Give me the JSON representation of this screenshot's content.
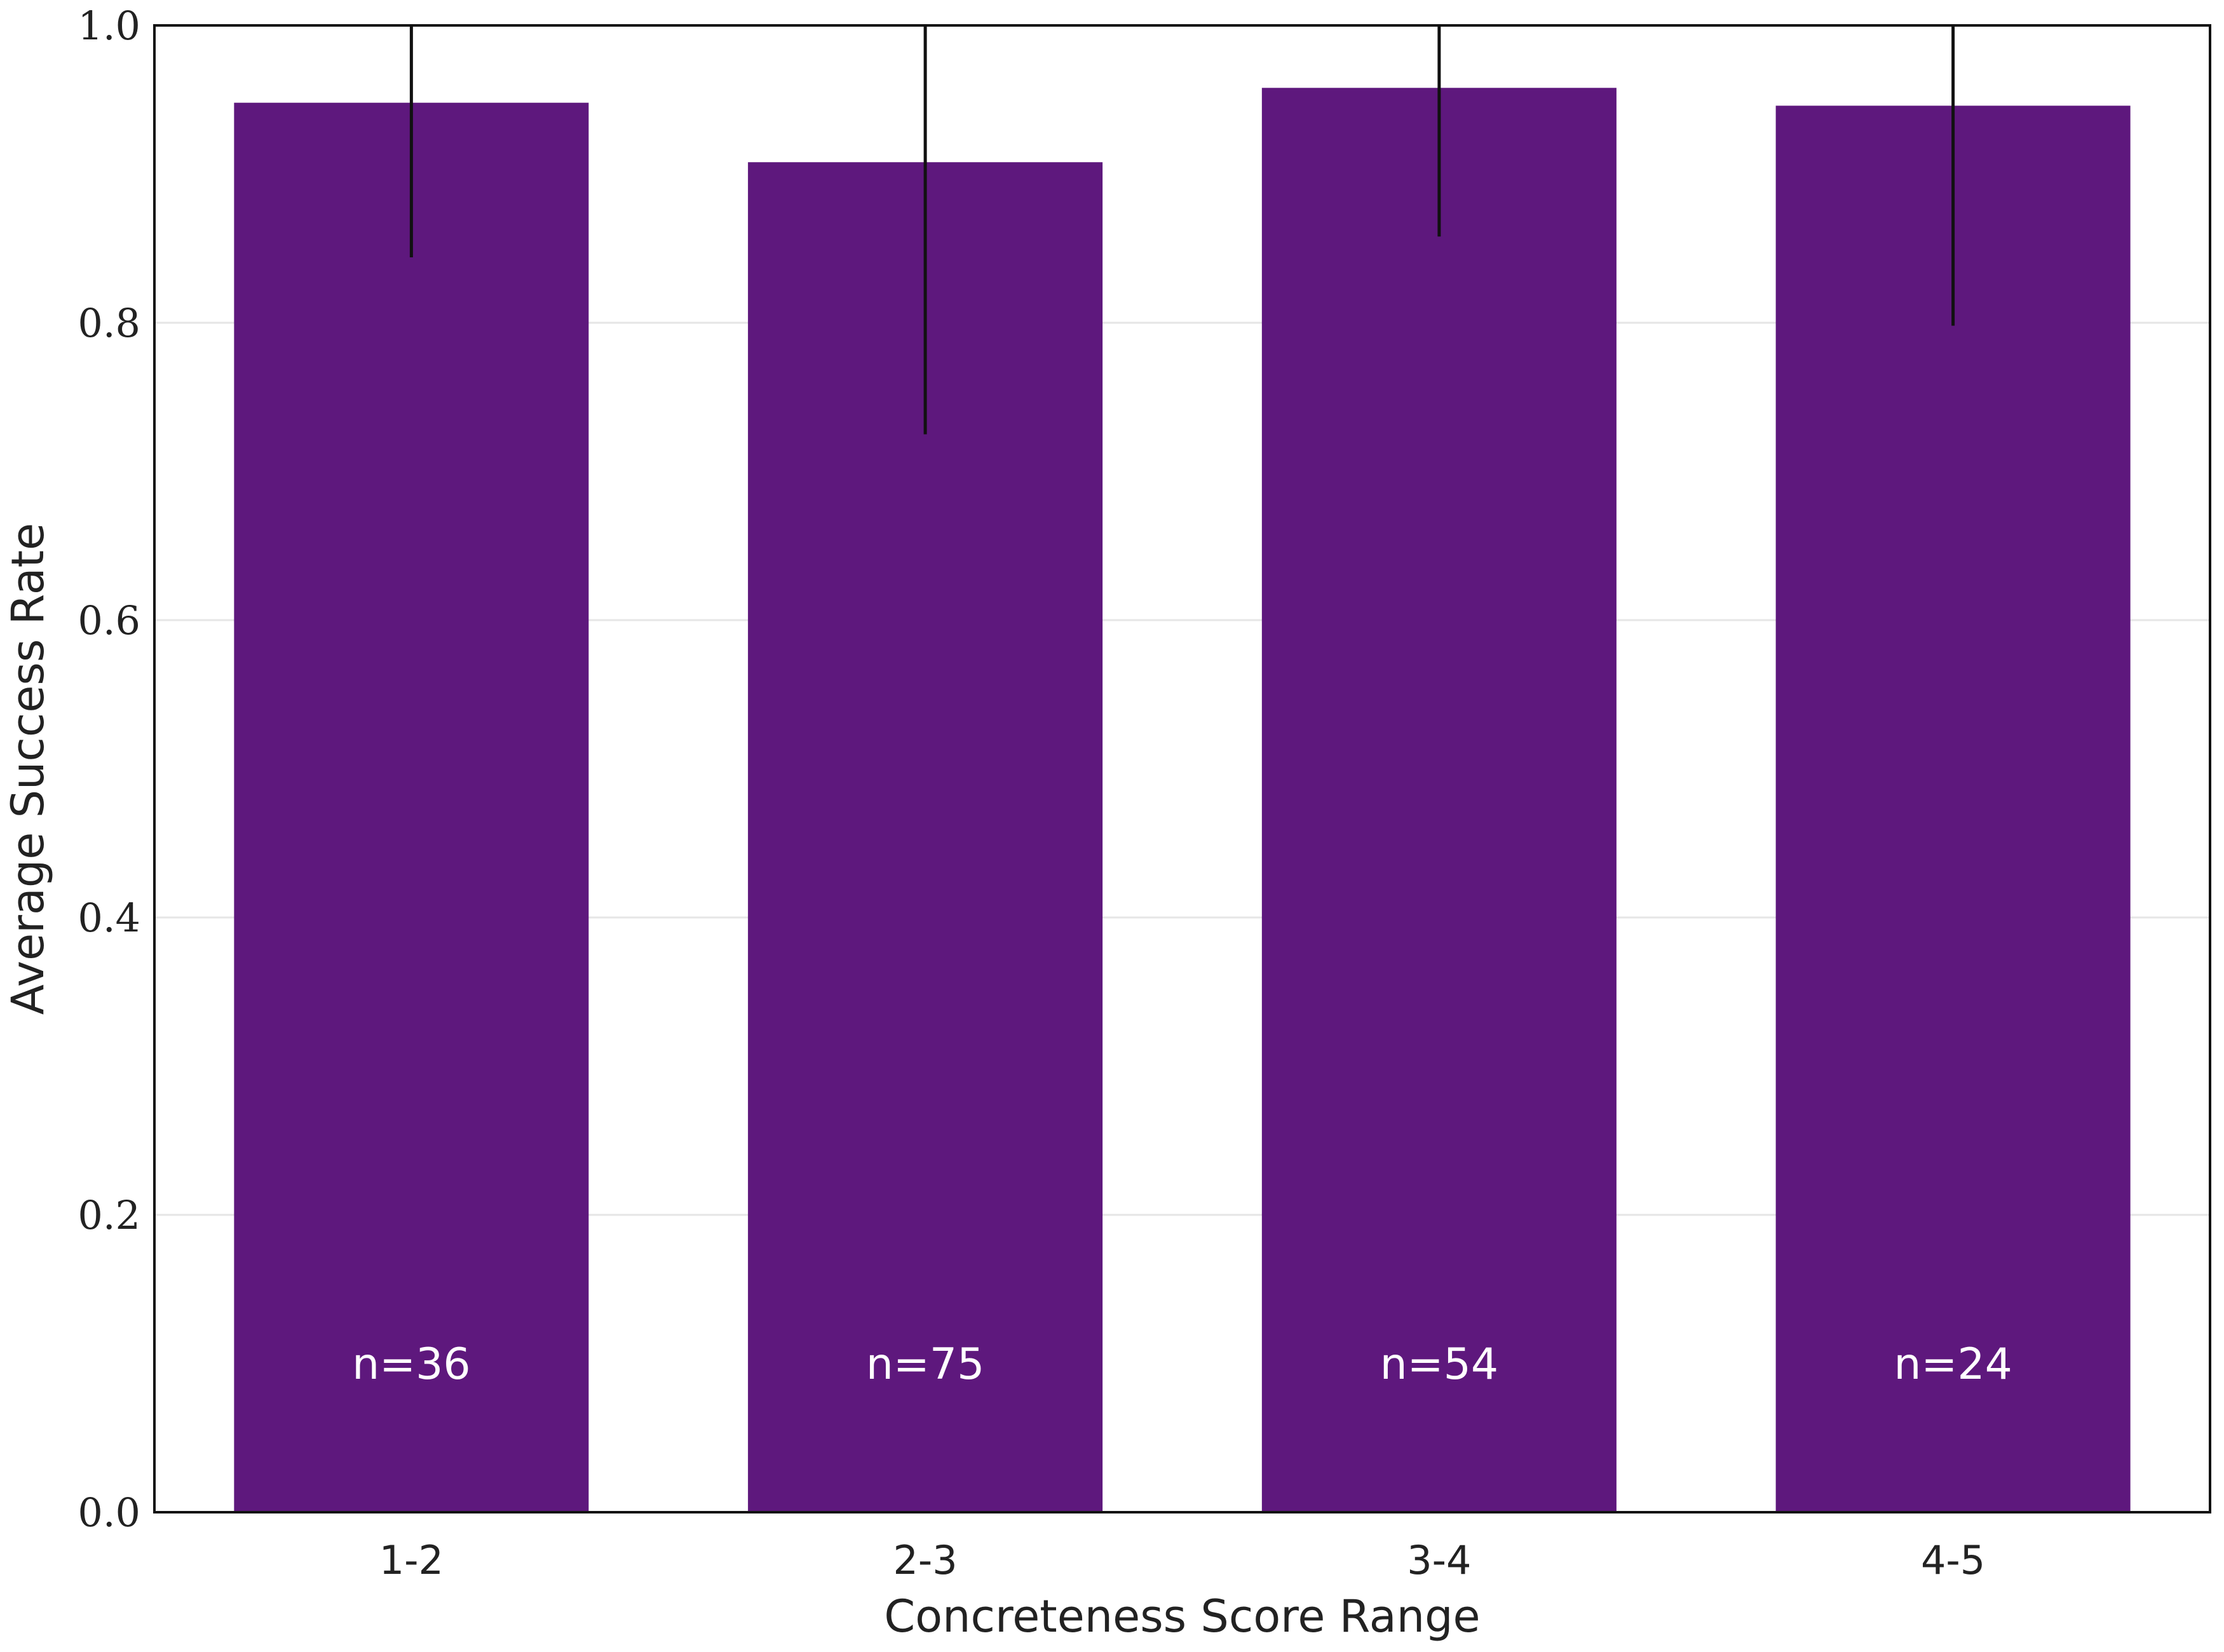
{
  "chart_data": {
    "type": "bar",
    "categories": [
      "1-2",
      "2-3",
      "3-4",
      "4-5"
    ],
    "values": [
      0.948,
      0.908,
      0.958,
      0.946
    ],
    "error_low": [
      0.844,
      0.725,
      0.858,
      0.798
    ],
    "error_high": [
      1.0,
      1.0,
      1.0,
      1.0
    ],
    "bar_labels": [
      "n=36",
      "n=75",
      "n=54",
      "n=24"
    ],
    "title": "",
    "xlabel": "Concreteness Score Range",
    "ylabel": "Average Success Rate",
    "ylim": [
      0.0,
      1.0
    ],
    "yticks": [
      "0.0",
      "0.2",
      "0.4",
      "0.6",
      "0.8",
      "1.0"
    ],
    "grid": "horizontal",
    "legend": "none",
    "bar_color": "#5e187d",
    "error_color": "#111111"
  }
}
